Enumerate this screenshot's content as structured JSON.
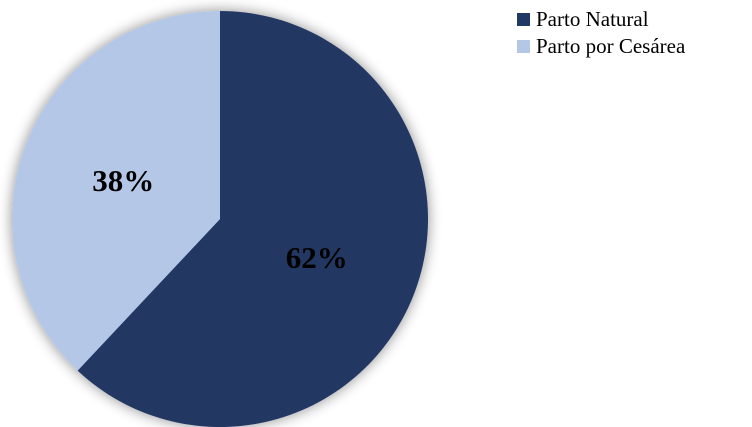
{
  "chart_data": {
    "type": "pie",
    "categories": [
      "Parto Natural",
      "Parto por Cesárea"
    ],
    "values": [
      62,
      38
    ],
    "labels": [
      "62%",
      "38%"
    ],
    "colors": [
      "#203864",
      "#b4c7e7"
    ],
    "legend_position": "top-right"
  }
}
